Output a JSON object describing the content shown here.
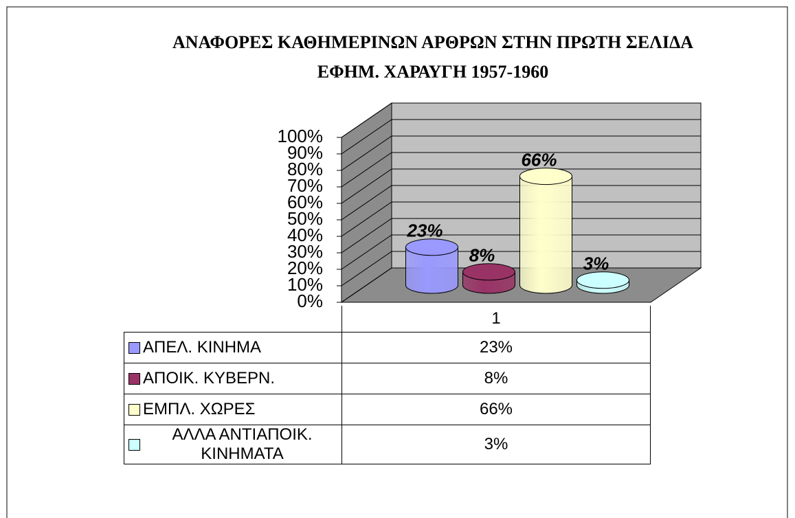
{
  "chart_data": {
    "type": "cylinder3d",
    "title": "ΑΝΑΦΟΡΕΣ ΚΑΘΗΜΕΡΙΝΩΝ ΑΡΘΡΩΝ ΣΤΗΝ ΠΡΩΤΗ ΣΕΛΙΔΑ ΕΦΗΜ. ΧΑΡΑΥΓΗ 1957-1960",
    "categories": [
      "1"
    ],
    "series": [
      {
        "name": "ΑΠΕΛ. ΚΙΝΗΜΑ",
        "color": "#9999ff",
        "values": [
          23
        ],
        "value_labels": [
          "23%"
        ]
      },
      {
        "name": "ΑΠΟΙΚ. ΚΥΒΕΡΝ.",
        "color": "#993366",
        "values": [
          8
        ],
        "value_labels": [
          "8%"
        ]
      },
      {
        "name": "ΕΜΠΛ. ΧΩΡΕΣ",
        "color": "#ffffcc",
        "values": [
          66
        ],
        "value_labels": [
          "66%"
        ]
      },
      {
        "name": "ΑΛΛΑ ΑΝΤΙΑΠΟΙΚ. ΚΙΝΗΜΑΤΑ",
        "color": "#ccffff",
        "values": [
          3
        ],
        "value_labels": [
          "3%"
        ]
      }
    ],
    "ylim": [
      0,
      100
    ],
    "yticks": [
      {
        "value": 0,
        "label": "0%"
      },
      {
        "value": 10,
        "label": "10%"
      },
      {
        "value": 20,
        "label": "20%"
      },
      {
        "value": 30,
        "label": "30%"
      },
      {
        "value": 40,
        "label": "40%"
      },
      {
        "value": 50,
        "label": "50%"
      },
      {
        "value": 60,
        "label": "60%"
      },
      {
        "value": 70,
        "label": "70%"
      },
      {
        "value": 80,
        "label": "80%"
      },
      {
        "value": 90,
        "label": "90%"
      },
      {
        "value": 100,
        "label": "100%"
      }
    ],
    "grid": true
  }
}
